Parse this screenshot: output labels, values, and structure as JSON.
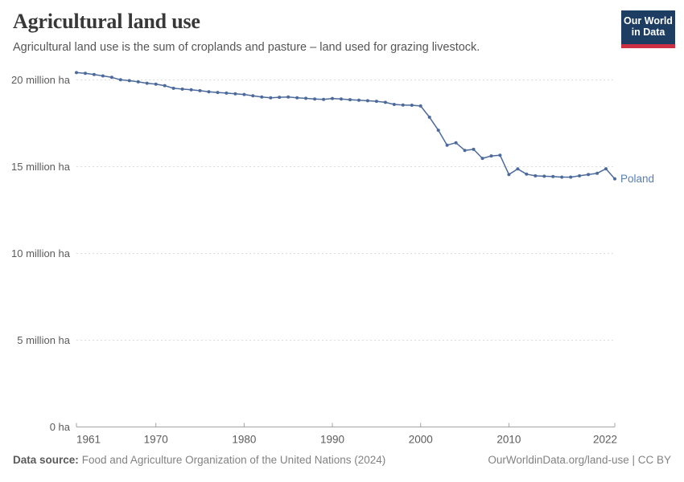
{
  "header": {
    "title": "Agricultural land use",
    "subtitle": "Agricultural land use is the sum of croplands and pasture – land used for grazing livestock.",
    "logo": {
      "line1": "Our World",
      "line2": "in Data",
      "background": "#1d3d63",
      "accent": "#cb3043"
    }
  },
  "chart_data": {
    "type": "line",
    "title": "Agricultural land use",
    "subtitle": "Agricultural land use is the sum of croplands and pasture – land used for grazing livestock.",
    "entity": "Poland",
    "unit": "million ha",
    "line_color": "#4c6a9c",
    "entity_label_color": "#577eb5",
    "grid": "dashed-horizontal",
    "legend": "inline-end-of-line",
    "xlim": [
      1961,
      2022
    ],
    "ylim": [
      0,
      20.5
    ],
    "xticks": [
      1961,
      1970,
      1980,
      1990,
      2000,
      2010,
      2022
    ],
    "yticks": [
      {
        "value": 20,
        "label": "20 million ha"
      },
      {
        "value": 15,
        "label": "15 million ha"
      },
      {
        "value": 10,
        "label": "10 million ha"
      },
      {
        "value": 5,
        "label": "5 million ha"
      },
      {
        "value": 0,
        "label": "0 ha"
      }
    ],
    "x": [
      1961,
      1962,
      1963,
      1964,
      1965,
      1966,
      1967,
      1968,
      1969,
      1970,
      1971,
      1972,
      1973,
      1974,
      1975,
      1976,
      1977,
      1978,
      1979,
      1980,
      1981,
      1982,
      1983,
      1984,
      1985,
      1986,
      1987,
      1988,
      1989,
      1990,
      1991,
      1992,
      1993,
      1994,
      1995,
      1996,
      1997,
      1998,
      1999,
      2000,
      2001,
      2002,
      2003,
      2004,
      2005,
      2006,
      2007,
      2008,
      2009,
      2010,
      2011,
      2012,
      2013,
      2014,
      2015,
      2016,
      2017,
      2018,
      2019,
      2020,
      2021,
      2022
    ],
    "values": [
      20.42,
      20.38,
      20.31,
      20.23,
      20.15,
      20.01,
      19.96,
      19.89,
      19.81,
      19.76,
      19.67,
      19.52,
      19.47,
      19.43,
      19.38,
      19.32,
      19.28,
      19.24,
      19.2,
      19.16,
      19.09,
      19.02,
      18.97,
      19.0,
      19.02,
      18.97,
      18.94,
      18.9,
      18.88,
      18.93,
      18.9,
      18.86,
      18.83,
      18.8,
      18.77,
      18.71,
      18.59,
      18.55,
      18.54,
      18.5,
      17.85,
      17.1,
      16.24,
      16.38,
      15.94,
      16.0,
      15.48,
      15.62,
      15.66,
      14.55,
      14.87,
      14.57,
      14.47,
      14.45,
      14.43,
      14.4,
      14.4,
      14.47,
      14.55,
      14.62,
      14.88,
      14.3
    ]
  },
  "footer": {
    "datasource_label": "Data source:",
    "datasource_text": "Food and Agriculture Organization of the United Nations (2024)",
    "link": "OurWorldinData.org/land-use",
    "license_suffix": " | CC BY"
  }
}
